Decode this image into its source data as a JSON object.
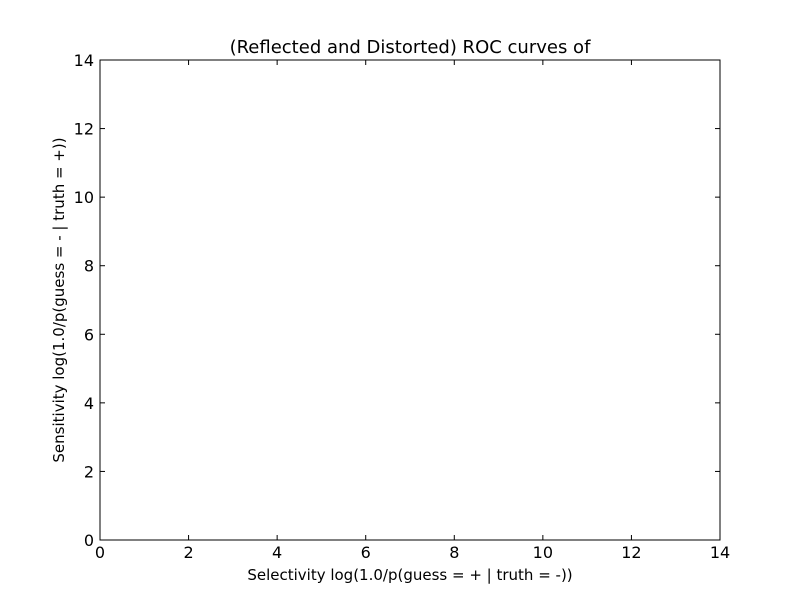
{
  "chart_data": {
    "type": "line",
    "title": "(Reflected and Distorted) ROC curves of",
    "xlabel": "Selectivity log(1.0/p(guess = + | truth = -))",
    "ylabel": "Sensitivity log(1.0/p(guess = - | truth = +))",
    "xlim": [
      0,
      14
    ],
    "ylim": [
      0,
      14
    ],
    "xticks": [
      "0",
      "2",
      "4",
      "6",
      "8",
      "10",
      "12",
      "14"
    ],
    "yticks": [
      "0",
      "2",
      "4",
      "6",
      "8",
      "10",
      "12",
      "14"
    ],
    "grid": false,
    "legend": "none",
    "series": []
  }
}
